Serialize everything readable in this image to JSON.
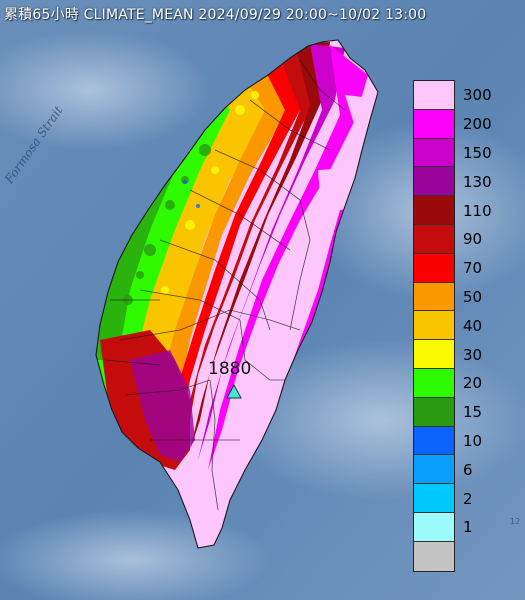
{
  "title": "累積65小時 CLIMATE_MEAN 2024/09/29 20:00~10/02 13:00",
  "strait_label": "Formosa Strait",
  "corner_note": "12",
  "station": {
    "value": "1880",
    "marker": "triangle-icon",
    "marker_color": "#48e6d4"
  },
  "legend": {
    "unit_hint": "",
    "bins": [
      {
        "label": "300",
        "color": "#fdc7fb"
      },
      {
        "label": "200",
        "color": "#fd02fb"
      },
      {
        "label": "150",
        "color": "#cb02cb"
      },
      {
        "label": "130",
        "color": "#9a049a"
      },
      {
        "label": "110",
        "color": "#9a0a0a"
      },
      {
        "label": "90",
        "color": "#c40c0c"
      },
      {
        "label": "70",
        "color": "#fb0000"
      },
      {
        "label": "50",
        "color": "#fb9800"
      },
      {
        "label": "40",
        "color": "#fbc400"
      },
      {
        "label": "30",
        "color": "#fbfb00"
      },
      {
        "label": "20",
        "color": "#2efb00"
      },
      {
        "label": "15",
        "color": "#2a9a12"
      },
      {
        "label": "10",
        "color": "#0a64fb"
      },
      {
        "label": "6",
        "color": "#0a9efb"
      },
      {
        "label": "2",
        "color": "#00c8fb"
      },
      {
        "label": "1",
        "color": "#9efbfb"
      },
      {
        "label": "",
        "color": "#c4c4c4"
      }
    ]
  }
}
